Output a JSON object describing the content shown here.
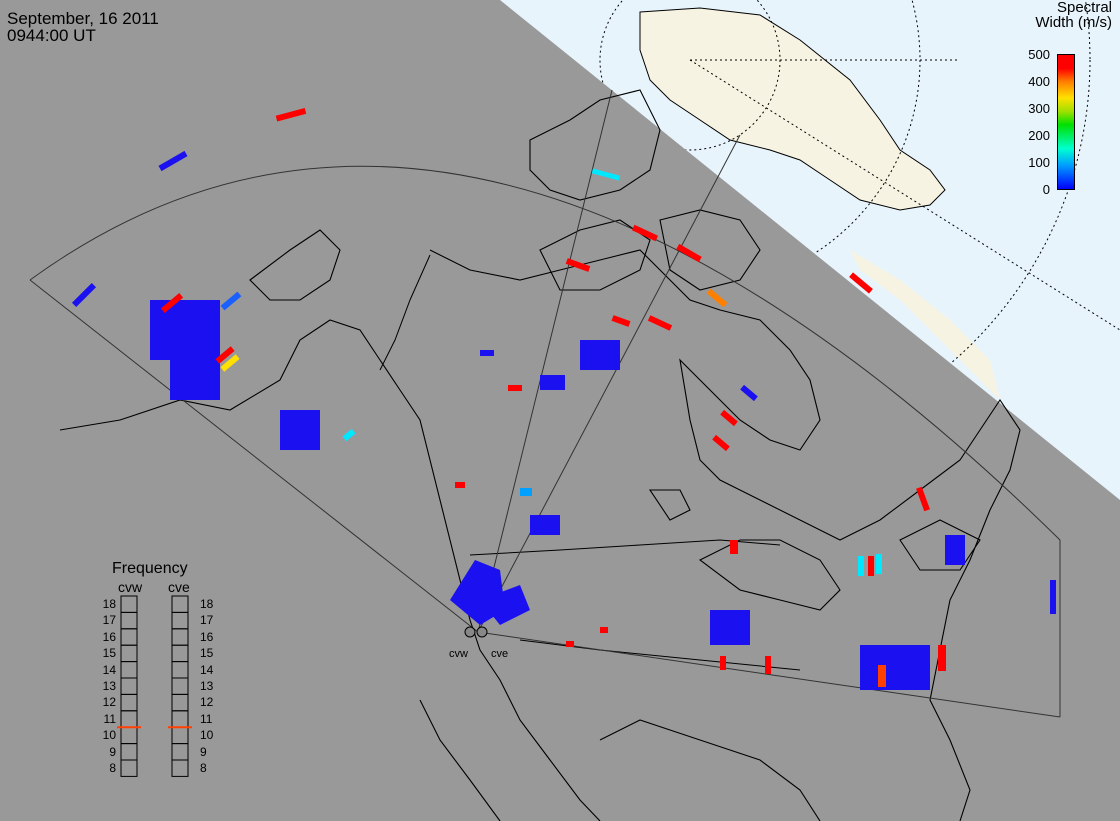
{
  "header": {
    "date": "September, 16 2011",
    "time": "0944:00 UT"
  },
  "colorbar": {
    "title_line1": "Spectral",
    "title_line2": "Width (m/s)",
    "ticks": [
      "500",
      "400",
      "300",
      "200",
      "100",
      "0"
    ],
    "min": 0,
    "max": 500
  },
  "frequency_panel": {
    "title": "Frequency",
    "radar_left": "cvw",
    "radar_right": "cve",
    "levels": [
      "18",
      "17",
      "16",
      "15",
      "14",
      "13",
      "12",
      "11",
      "10",
      "9",
      "8"
    ],
    "cvw_frequency_mhz": 10.5,
    "cve_frequency_mhz": 10.5,
    "marker_color": "#ff4000"
  },
  "radar_sites": [
    {
      "name": "cvw"
    },
    {
      "name": "cve"
    }
  ],
  "colors": {
    "night": "#999999",
    "day_ocean": "#e8f4fc",
    "day_land": "#f7f3e3",
    "coast": "#000000"
  }
}
